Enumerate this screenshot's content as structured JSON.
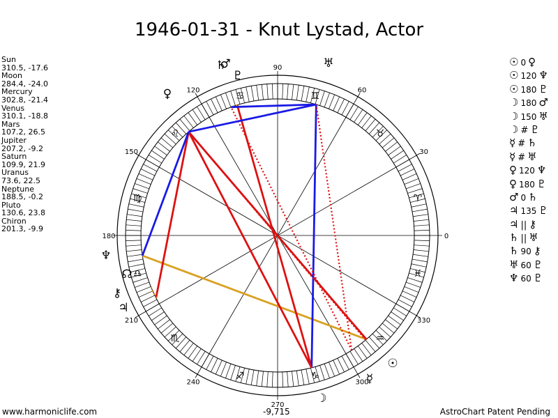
{
  "title": "1946-01-31 - Knut Lystad, Actor",
  "planets": [
    {
      "name": "Sun",
      "coords": "310.5, -17.6"
    },
    {
      "name": "Moon",
      "coords": "284.4, -24.0"
    },
    {
      "name": "Mercury",
      "coords": "302.8, -21.4"
    },
    {
      "name": "Venus",
      "coords": "310.1, -18.8"
    },
    {
      "name": "Mars",
      "coords": "107.2, 26.5"
    },
    {
      "name": "Jupiter",
      "coords": "207.2, -9.2"
    },
    {
      "name": "Saturn",
      "coords": "109.9, 21.9"
    },
    {
      "name": "Uranus",
      "coords": "73.6, 22.5"
    },
    {
      "name": "Neptune",
      "coords": "188.5, -0.2"
    },
    {
      "name": "Pluto",
      "coords": "130.6, 23.8"
    },
    {
      "name": "Chiron",
      "coords": "201.3, -9.9"
    }
  ],
  "aspects": [
    {
      "p1": "sun",
      "angle": "0",
      "p2": "venus"
    },
    {
      "p1": "sun",
      "angle": "120",
      "p2": "neptune"
    },
    {
      "p1": "sun",
      "angle": "180",
      "p2": "pluto"
    },
    {
      "p1": "moon",
      "angle": "180",
      "p2": "mars"
    },
    {
      "p1": "moon",
      "angle": "150",
      "p2": "uranus"
    },
    {
      "p1": "moon",
      "angle": "#",
      "p2": "pluto"
    },
    {
      "p1": "mercury",
      "angle": "#",
      "p2": "saturn"
    },
    {
      "p1": "mercury",
      "angle": "#",
      "p2": "uranus"
    },
    {
      "p1": "venus",
      "angle": "120",
      "p2": "neptune"
    },
    {
      "p1": "venus",
      "angle": "180",
      "p2": "pluto"
    },
    {
      "p1": "mars",
      "angle": "0",
      "p2": "saturn"
    },
    {
      "p1": "jupiter",
      "angle": "135",
      "p2": "pluto"
    },
    {
      "p1": "jupiter",
      "angle": "||",
      "p2": "chiron"
    },
    {
      "p1": "saturn",
      "angle": "||",
      "p2": "uranus"
    },
    {
      "p1": "saturn",
      "angle": "90",
      "p2": "chiron"
    },
    {
      "p1": "uranus",
      "angle": "60",
      "p2": "pluto"
    },
    {
      "p1": "neptune",
      "angle": "60",
      "p2": "pluto"
    }
  ],
  "degree_labels": [
    "0",
    "30",
    "60",
    "90",
    "120",
    "150",
    "180",
    "210",
    "240",
    "270",
    "300",
    "330"
  ],
  "harmonic_value": "-9,715",
  "footer": {
    "left": "www.harmoniclife.com",
    "right": "AstroChart Patent Pending"
  },
  "colors": {
    "aspect_red": "#dd1111",
    "aspect_blue": "#1a1ae6",
    "aspect_gold": "#d9a020",
    "wheel": "#000000"
  }
}
